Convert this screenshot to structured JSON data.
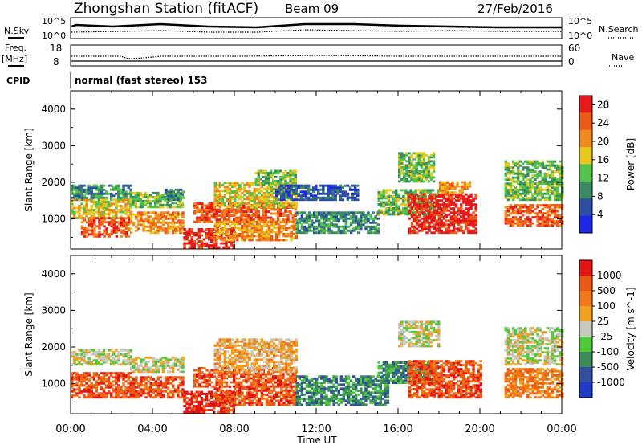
{
  "header": {
    "station": "Zhongshan Station (fitACF)",
    "beam": "Beam 09",
    "date": "27/Feb/2016"
  },
  "top_panels": {
    "nsky_label": "N.Sky",
    "nsearch_label": "N.Search",
    "nsky_ticks": [
      "10^5",
      "10^0"
    ],
    "nsearch_ticks": [
      "10^5",
      "10^0"
    ],
    "freq_label_1": "Freq.",
    "freq_label_2": "[MHz]",
    "freq_ticks": [
      "18",
      "8"
    ],
    "nave_label": "Nave",
    "nave_ticks": [
      "60",
      "0"
    ],
    "cpid_label": "CPID",
    "cpid_value": "normal (fast stereo) 153"
  },
  "x_axis": {
    "title": "Time UT",
    "ticks": [
      "00:00",
      "04:00",
      "08:00",
      "12:00",
      "16:00",
      "20:00",
      "00:00"
    ]
  },
  "colors": {
    "power": [
      "#1e28e6",
      "#2d4fa6",
      "#3a8a63",
      "#52c24a",
      "#e6c81e",
      "#f08a1e",
      "#ee5a18",
      "#e61a1a"
    ],
    "velocity": [
      "#1e3cc8",
      "#3250a0",
      "#3c8c5a",
      "#50c83c",
      "#c8c8c0",
      "#f0a01e",
      "#f07818",
      "#eb5a14",
      "#e61414"
    ]
  },
  "chart_data": [
    {
      "type": "heatmap",
      "title": "",
      "ylabel": "Slant Range [km]",
      "xlabel": "Time UT",
      "xlim_hours": [
        0,
        24
      ],
      "ylim_km": [
        180,
        4500
      ],
      "y_ticks": [
        "1000",
        "2000",
        "3000",
        "4000"
      ],
      "colorbar": {
        "label": "Power [dB]",
        "range": [
          0,
          30
        ],
        "ticks": [
          "4",
          "8",
          "12",
          "16",
          "20",
          "24",
          "28"
        ]
      },
      "echo_regions": [
        {
          "t": [
            0.0,
            2.9
          ],
          "r": [
            1500,
            1900
          ],
          "level": 2
        },
        {
          "t": [
            0.0,
            2.9
          ],
          "r": [
            1000,
            1500
          ],
          "level": 4
        },
        {
          "t": [
            0.5,
            2.9
          ],
          "r": [
            500,
            1000
          ],
          "level": 6
        },
        {
          "t": [
            3.0,
            5.5
          ],
          "r": [
            1300,
            1700
          ],
          "level": 3
        },
        {
          "t": [
            2.9,
            5.5
          ],
          "r": [
            600,
            1200
          ],
          "level": 5
        },
        {
          "t": [
            4.6,
            5.5
          ],
          "r": [
            1500,
            1800
          ],
          "level": 2
        },
        {
          "t": [
            5.5,
            8.0
          ],
          "r": [
            200,
            700
          ],
          "level": 7
        },
        {
          "t": [
            6.0,
            11.0
          ],
          "r": [
            900,
            1400
          ],
          "level": 6
        },
        {
          "t": [
            7.0,
            11.0
          ],
          "r": [
            1300,
            2000
          ],
          "level": 4
        },
        {
          "t": [
            9.0,
            11.0
          ],
          "r": [
            1900,
            2300
          ],
          "level": 3
        },
        {
          "t": [
            7.0,
            11.0
          ],
          "r": [
            400,
            900
          ],
          "level": 5
        },
        {
          "t": [
            10.0,
            14.0
          ],
          "r": [
            1500,
            1900
          ],
          "level": 1
        },
        {
          "t": [
            11.0,
            15.0
          ],
          "r": [
            600,
            1200
          ],
          "level": 2
        },
        {
          "t": [
            15.0,
            18.0
          ],
          "r": [
            1100,
            1800
          ],
          "level": 3
        },
        {
          "t": [
            16.0,
            17.8
          ],
          "r": [
            2000,
            2800
          ],
          "level": 3
        },
        {
          "t": [
            16.5,
            19.8
          ],
          "r": [
            600,
            1700
          ],
          "level": 7
        },
        {
          "t": [
            18.0,
            19.5
          ],
          "r": [
            1700,
            2000
          ],
          "level": 5
        },
        {
          "t": [
            21.2,
            24.0
          ],
          "r": [
            1500,
            2600
          ],
          "level": 3
        },
        {
          "t": [
            21.2,
            24.0
          ],
          "r": [
            800,
            1400
          ],
          "level": 6
        }
      ]
    },
    {
      "type": "heatmap",
      "title": "",
      "ylabel": "Slant Range [km]",
      "xlabel": "Time UT",
      "xlim_hours": [
        0,
        24
      ],
      "ylim_km": [
        180,
        4500
      ],
      "y_ticks": [
        "1000",
        "2000",
        "3000",
        "4000"
      ],
      "colorbar": {
        "label": "Velocity [m s^-1]",
        "range": [
          -1000,
          1000
        ],
        "ticks": [
          "1000",
          "500",
          "100",
          "25",
          "-25",
          "-100",
          "-500",
          "-1000"
        ]
      },
      "echo_regions": [
        {
          "t": [
            0.0,
            2.9
          ],
          "r": [
            1500,
            1900
          ],
          "level": 4
        },
        {
          "t": [
            0.0,
            2.9
          ],
          "r": [
            600,
            1300
          ],
          "level": 7
        },
        {
          "t": [
            2.9,
            5.5
          ],
          "r": [
            1300,
            1700
          ],
          "level": 4
        },
        {
          "t": [
            2.9,
            5.5
          ],
          "r": [
            600,
            1200
          ],
          "level": 7
        },
        {
          "t": [
            5.5,
            8.0
          ],
          "r": [
            200,
            800
          ],
          "level": 8
        },
        {
          "t": [
            6.0,
            11.0
          ],
          "r": [
            900,
            1400
          ],
          "level": 7
        },
        {
          "t": [
            7.0,
            11.0
          ],
          "r": [
            1300,
            2200
          ],
          "level": 5
        },
        {
          "t": [
            7.0,
            11.0
          ],
          "r": [
            400,
            900
          ],
          "level": 7
        },
        {
          "t": [
            11.0,
            15.5
          ],
          "r": [
            400,
            1200
          ],
          "level": 2
        },
        {
          "t": [
            15.0,
            18.0
          ],
          "r": [
            1000,
            1600
          ],
          "level": 2
        },
        {
          "t": [
            16.0,
            18.0
          ],
          "r": [
            2000,
            2700
          ],
          "level": 4
        },
        {
          "t": [
            16.5,
            20.0
          ],
          "r": [
            600,
            1600
          ],
          "level": 7
        },
        {
          "t": [
            21.2,
            24.0
          ],
          "r": [
            1500,
            2500
          ],
          "level": 4
        },
        {
          "t": [
            21.2,
            24.0
          ],
          "r": [
            600,
            1400
          ],
          "level": 6
        }
      ]
    }
  ]
}
